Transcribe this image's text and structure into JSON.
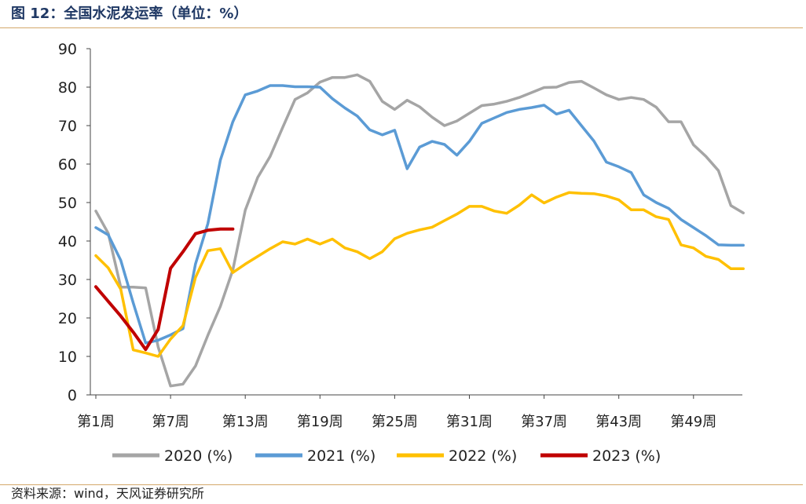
{
  "header": {
    "title": "图 12：全国水泥发运率（单位：%）"
  },
  "footer": {
    "source": "资料来源：wind，天风证券研究所"
  },
  "colors": {
    "accent_rule": "#d4a86a",
    "title": "#1f3864"
  },
  "chart_data": {
    "type": "line",
    "title": "",
    "xlabel": "",
    "ylabel": "",
    "ylim": [
      0,
      90
    ],
    "yticks": [
      0,
      10,
      20,
      30,
      40,
      50,
      60,
      70,
      80,
      90
    ],
    "xlim": [
      1,
      53
    ],
    "xtick_positions": [
      1,
      7,
      13,
      19,
      25,
      31,
      37,
      43,
      49
    ],
    "xtick_labels": [
      "第1周",
      "第7周",
      "第13周",
      "第19周",
      "第25周",
      "第31周",
      "第37周",
      "第43周",
      "第49周"
    ],
    "grid": false,
    "legend_position": "bottom",
    "series": [
      {
        "name": "2020 (%)",
        "color": "#a5a5a5",
        "x": [
          1,
          2,
          3,
          4,
          5,
          6,
          7,
          8,
          9,
          10,
          11,
          12,
          13,
          14,
          15,
          16,
          17,
          18,
          19,
          20,
          21,
          22,
          23,
          24,
          25,
          26,
          27,
          28,
          29,
          30,
          31,
          32,
          33,
          34,
          35,
          36,
          37,
          38,
          39,
          40,
          41,
          42,
          43,
          44,
          45,
          46,
          47,
          48,
          49,
          50,
          51,
          52,
          53
        ],
        "values": [
          47.8,
          42,
          28,
          28,
          27.8,
          12.5,
          2.3,
          2.8,
          7.5,
          15.5,
          23,
          32.5,
          48,
          56.5,
          62,
          69.5,
          76.8,
          78.5,
          81.3,
          82.5,
          82.5,
          83.2,
          81.5,
          76.3,
          74.2,
          76.6,
          74.9,
          72.2,
          70,
          71.2,
          73.2,
          75.2,
          75.6,
          76.3,
          77.3,
          78.6,
          79.9,
          80,
          81.2,
          81.5,
          79.8,
          78,
          76.8,
          77.3,
          76.8,
          74.8,
          71,
          71,
          65,
          62,
          58.3,
          49.2,
          47.3
        ]
      },
      {
        "name": "2021 (%)",
        "color": "#5b9bd5",
        "x": [
          1,
          2,
          3,
          4,
          5,
          6,
          7,
          8,
          9,
          10,
          11,
          12,
          13,
          14,
          15,
          16,
          17,
          18,
          19,
          20,
          21,
          22,
          23,
          24,
          25,
          26,
          27,
          28,
          29,
          30,
          31,
          32,
          33,
          34,
          35,
          36,
          37,
          38,
          39,
          40,
          41,
          42,
          43,
          44,
          45,
          46,
          47,
          48,
          49,
          50,
          51,
          52,
          53
        ],
        "values": [
          43.5,
          41.6,
          35,
          23.9,
          13.5,
          14.2,
          15.6,
          17.2,
          34,
          44.5,
          61,
          71,
          78,
          79,
          80.4,
          80.4,
          80.1,
          80.1,
          80,
          77,
          74.6,
          72.5,
          68.9,
          67.6,
          68.8,
          58.8,
          64.4,
          65.9,
          65.1,
          62.3,
          65.9,
          70.6,
          72,
          73.4,
          74.2,
          74.7,
          75.3,
          73,
          74,
          70,
          66,
          60.5,
          59.3,
          57.8,
          52,
          50,
          48.5,
          45.6,
          43.5,
          41.4,
          39,
          38.9,
          38.9
        ]
      },
      {
        "name": "2022 (%)",
        "color": "#ffc000",
        "x": [
          1,
          2,
          3,
          4,
          5,
          6,
          7,
          8,
          9,
          10,
          11,
          12,
          13,
          14,
          15,
          16,
          17,
          18,
          19,
          20,
          21,
          22,
          23,
          24,
          25,
          26,
          27,
          28,
          29,
          30,
          31,
          32,
          33,
          34,
          35,
          36,
          37,
          38,
          39,
          40,
          41,
          42,
          43,
          44,
          45,
          46,
          47,
          48,
          49,
          50,
          51,
          52,
          53
        ],
        "values": [
          36.2,
          33,
          27.5,
          11.7,
          10.9,
          10,
          14.5,
          18,
          30.5,
          37.5,
          38,
          31.8,
          34,
          36,
          38,
          39.8,
          39.2,
          40.5,
          39.2,
          40.5,
          38.2,
          37.2,
          35.4,
          37.2,
          40.6,
          42,
          42.9,
          43.6,
          45.3,
          47,
          49,
          49,
          47.8,
          47.2,
          49.3,
          52,
          49.9,
          51.4,
          52.6,
          52.4,
          52.3,
          51.7,
          50.7,
          48.1,
          48.1,
          46.3,
          45.6,
          39,
          38.2,
          36,
          35.2,
          32.8,
          32.8
        ]
      },
      {
        "name": "2023 (%)",
        "color": "#c00000",
        "x": [
          1,
          2,
          3,
          4,
          5,
          6,
          7,
          8,
          9,
          10,
          11,
          12
        ],
        "values": [
          28.1,
          24.3,
          20.5,
          16.3,
          11.8,
          17,
          32.9,
          37.2,
          41.9,
          42.8,
          43.1,
          43.1
        ]
      }
    ]
  }
}
